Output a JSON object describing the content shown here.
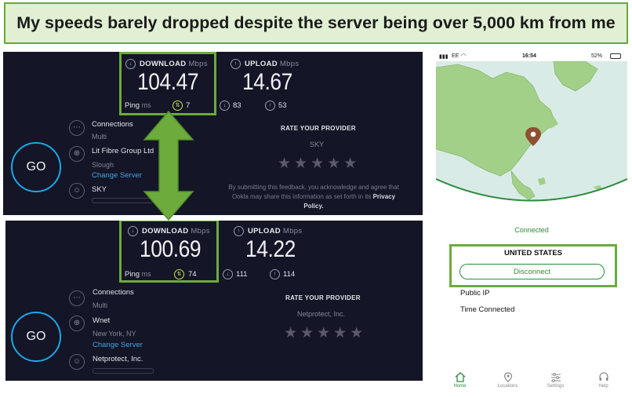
{
  "banner": {
    "text": "My speeds barely dropped despite the server being over 5,000 km from me"
  },
  "colors": {
    "accent_green": "#66aa35",
    "panel_bg": "#141526",
    "go_ring": "#19a9e6",
    "link_blue": "#3fa6e4",
    "app_green": "#2e8b3d"
  },
  "tests": [
    {
      "download_label": "DOWNLOAD",
      "download_unit": "Mbps",
      "download_value": "104.47",
      "upload_label": "UPLOAD",
      "upload_unit": "Mbps",
      "upload_value": "14.67",
      "ping_label": "Ping",
      "ping_unit": "ms",
      "ping_value": "7",
      "jitter_down": "83",
      "jitter_up": "53",
      "connections_title": "Connections",
      "connections_value": "Multi",
      "server_name": "Lit Fibre Group Ltd",
      "server_location": "Slough",
      "change_server": "Change Server",
      "isp_name": "SKY",
      "go_label": "GO",
      "rate_title": "RATE YOUR PROVIDER",
      "rate_provider": "SKY",
      "disclaimer_1": "By submitting this feedback, you acknowledge and agree that",
      "disclaimer_2": "Ookla may share this information as set forth in its",
      "disclaimer_link_1": "Privacy",
      "disclaimer_link_2": "Policy."
    },
    {
      "download_label": "DOWNLOAD",
      "download_unit": "Mbps",
      "download_value": "100.69",
      "upload_label": "UPLOAD",
      "upload_unit": "Mbps",
      "upload_value": "14.22",
      "ping_label": "Ping",
      "ping_unit": "ms",
      "ping_value": "74",
      "jitter_down": "111",
      "jitter_up": "114",
      "connections_title": "Connections",
      "connections_value": "Multi",
      "server_name": "Wnet",
      "server_location": "New York, NY",
      "change_server": "Change Server",
      "isp_name": "Netprotect, Inc.",
      "go_label": "GO",
      "rate_title": "RATE YOUR PROVIDER",
      "rate_provider": "Netprotect, Inc."
    }
  ],
  "phone": {
    "carrier": "EE",
    "time": "16:54",
    "battery": "52%",
    "status": "Connected",
    "country": "UNITED STATES",
    "disconnect": "Disconnect",
    "public_ip_label": "Public IP",
    "time_connected_label": "Time Connected",
    "tabs": [
      "Home",
      "Locations",
      "Settings",
      "Help"
    ]
  }
}
